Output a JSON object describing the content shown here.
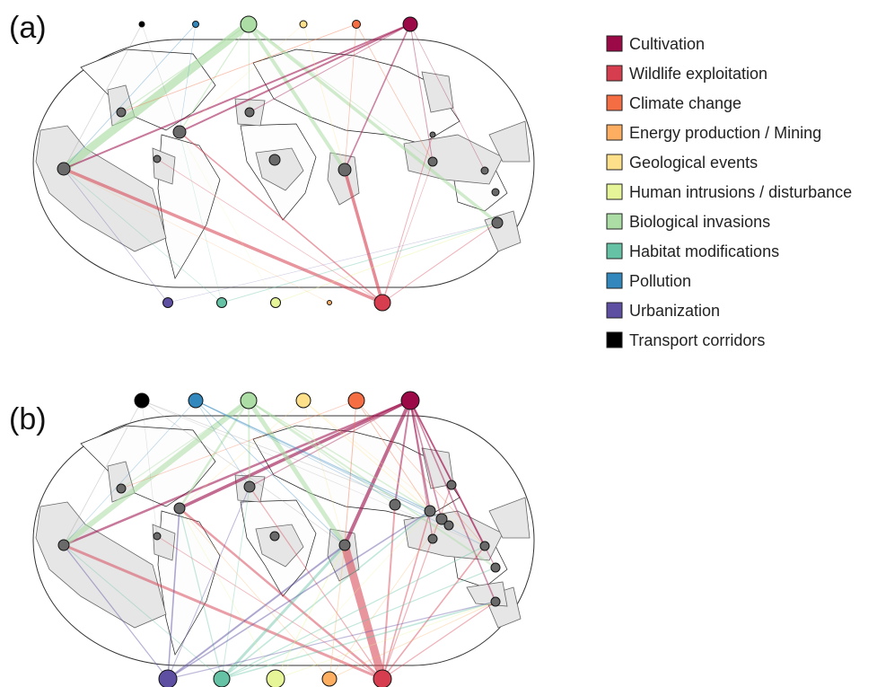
{
  "figure": {
    "panels": [
      {
        "id": "a",
        "label": "(a)"
      },
      {
        "id": "b",
        "label": "(b)"
      }
    ]
  },
  "legend": {
    "items": [
      {
        "key": "cultivation",
        "label": "Cultivation",
        "color": "#9b0a47"
      },
      {
        "key": "wildlife",
        "label": "Wildlife exploitation",
        "color": "#d63e4f"
      },
      {
        "key": "climate",
        "label": "Climate change",
        "color": "#f46d43"
      },
      {
        "key": "energy",
        "label": "Energy production / Mining",
        "color": "#fdae61"
      },
      {
        "key": "geological",
        "label": "Geological events",
        "color": "#fee08b"
      },
      {
        "key": "human",
        "label": "Human intrusions / disturbance",
        "color": "#e6f598"
      },
      {
        "key": "invasions",
        "label": "Biological invasions",
        "color": "#abdda4"
      },
      {
        "key": "habitat",
        "label": "Habitat modifications",
        "color": "#66c2a5"
      },
      {
        "key": "pollution",
        "label": "Pollution",
        "color": "#3288bd"
      },
      {
        "key": "urbanization",
        "label": "Urbanization",
        "color": "#5e4fa2"
      },
      {
        "key": "transport",
        "label": "Transport corridors",
        "color": "#000000"
      }
    ]
  },
  "colors": {
    "land": "#ffffff",
    "region_fill": "#e6e6e6",
    "region_node": "#6a6a6a",
    "map_outline": "#333333"
  }
}
